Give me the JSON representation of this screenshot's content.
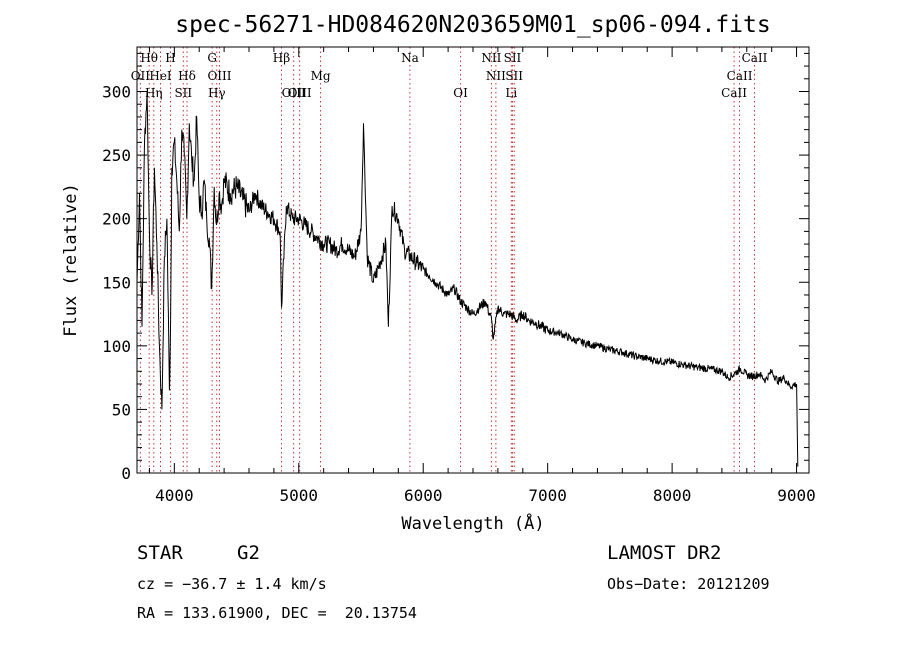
{
  "chart_data": {
    "type": "line",
    "title": "spec-56271-HD084620N203659M01_sp06-094.fits",
    "xlabel": "Wavelength (Å)",
    "ylabel": "Flux (relative)",
    "xlim": [
      3700,
      9100
    ],
    "ylim": [
      0,
      335
    ],
    "xticks": [
      4000,
      5000,
      6000,
      7000,
      8000,
      9000
    ],
    "yticks": [
      0,
      50,
      100,
      150,
      200,
      250,
      300
    ],
    "grid": false,
    "line_color": "#000000",
    "marker_color": "#cc3333",
    "series": [
      {
        "x": [
          3700,
          3720,
          3740,
          3760,
          3780,
          3800,
          3820,
          3840,
          3860,
          3880,
          3900,
          3920,
          3940,
          3960,
          3970,
          3980,
          4000,
          4020,
          4040,
          4060,
          4080,
          4100,
          4120,
          4140,
          4160,
          4180,
          4200,
          4220,
          4240,
          4260,
          4280,
          4300,
          4320,
          4340,
          4360,
          4380,
          4400,
          4450,
          4500,
          4550,
          4600,
          4650,
          4700,
          4750,
          4800,
          4850,
          4861,
          4900,
          4950,
          5000,
          5050,
          5100,
          5150,
          5200,
          5250,
          5300,
          5350,
          5400,
          5450,
          5500,
          5520,
          5550,
          5600,
          5650,
          5700,
          5720,
          5750,
          5800,
          5850,
          5900,
          5950,
          6000,
          6050,
          6100,
          6150,
          6200,
          6250,
          6300,
          6350,
          6400,
          6450,
          6500,
          6550,
          6563,
          6600,
          6650,
          6700,
          6750,
          6800,
          6850,
          6900,
          6950,
          7000,
          7100,
          7200,
          7300,
          7400,
          7500,
          7600,
          7700,
          7800,
          7900,
          8000,
          8100,
          8200,
          8300,
          8400,
          8450,
          8500,
          8550,
          8600,
          8650,
          8700,
          8750,
          8800,
          8850,
          8900,
          8950,
          9000,
          9010
        ],
        "y": [
          150,
          220,
          115,
          260,
          300,
          190,
          140,
          240,
          180,
          100,
          50,
          170,
          200,
          65,
          120,
          240,
          260,
          230,
          190,
          270,
          250,
          200,
          275,
          245,
          230,
          280,
          215,
          205,
          230,
          200,
          185,
          145,
          225,
          195,
          220,
          210,
          230,
          220,
          225,
          215,
          205,
          220,
          210,
          205,
          200,
          190,
          130,
          210,
          200,
          200,
          195,
          190,
          185,
          180,
          180,
          175,
          180,
          175,
          170,
          190,
          275,
          170,
          150,
          165,
          180,
          115,
          210,
          200,
          175,
          170,
          165,
          160,
          155,
          150,
          145,
          140,
          145,
          135,
          130,
          125,
          130,
          135,
          120,
          105,
          130,
          125,
          125,
          120,
          125,
          120,
          118,
          115,
          112,
          110,
          105,
          102,
          100,
          97,
          95,
          92,
          90,
          88,
          87,
          85,
          83,
          82,
          80,
          75,
          78,
          82,
          77,
          76,
          78,
          73,
          80,
          72,
          75,
          68,
          70,
          5
        ]
      }
    ],
    "lines": [
      {
        "label": "Hθ",
        "wl": 3798,
        "row": 1
      },
      {
        "label": "OII",
        "wl": 3727,
        "row": 2
      },
      {
        "label": "Hη",
        "wl": 3835,
        "row": 3
      },
      {
        "label": "HeI",
        "wl": 3889,
        "row": 2
      },
      {
        "label": "H",
        "wl": 3969,
        "row": 1
      },
      {
        "label": "Hδ",
        "wl": 4102,
        "row": 2
      },
      {
        "label": "SII",
        "wl": 4072,
        "row": 3
      },
      {
        "label": "G",
        "wl": 4304,
        "row": 1
      },
      {
        "label": "OIII",
        "wl": 4363,
        "row": 2
      },
      {
        "label": "Hγ",
        "wl": 4341,
        "row": 3
      },
      {
        "label": "Hβ",
        "wl": 4861,
        "row": 1
      },
      {
        "label": "OIII",
        "wl": 4959,
        "row": 3
      },
      {
        "label": "OIII",
        "wl": 5007,
        "row": 3
      },
      {
        "label": "Mg",
        "wl": 5175,
        "row": 2
      },
      {
        "label": "Na",
        "wl": 5893,
        "row": 1
      },
      {
        "label": "OI",
        "wl": 6300,
        "row": 3
      },
      {
        "label": "NII",
        "wl": 6548,
        "row": 1
      },
      {
        "label": "NII",
        "wl": 6584,
        "row": 2
      },
      {
        "label": "SII",
        "wl": 6717,
        "row": 1
      },
      {
        "label": "SII",
        "wl": 6731,
        "row": 2
      },
      {
        "label": "Li",
        "wl": 6708,
        "row": 3
      },
      {
        "label": "CaII",
        "wl": 8498,
        "row": 3
      },
      {
        "label": "CaII",
        "wl": 8542,
        "row": 2
      },
      {
        "label": "CaII",
        "wl": 8662,
        "row": 1
      }
    ]
  },
  "footer": {
    "object_type": "STAR",
    "subclass": "G2",
    "survey": "LAMOST DR2",
    "cz": "cz = −36.7 ± 1.4 km/s",
    "obs_date": "Obs−Date: 20121209",
    "coords": "RA = 133.61900, DEC =  20.13754"
  }
}
